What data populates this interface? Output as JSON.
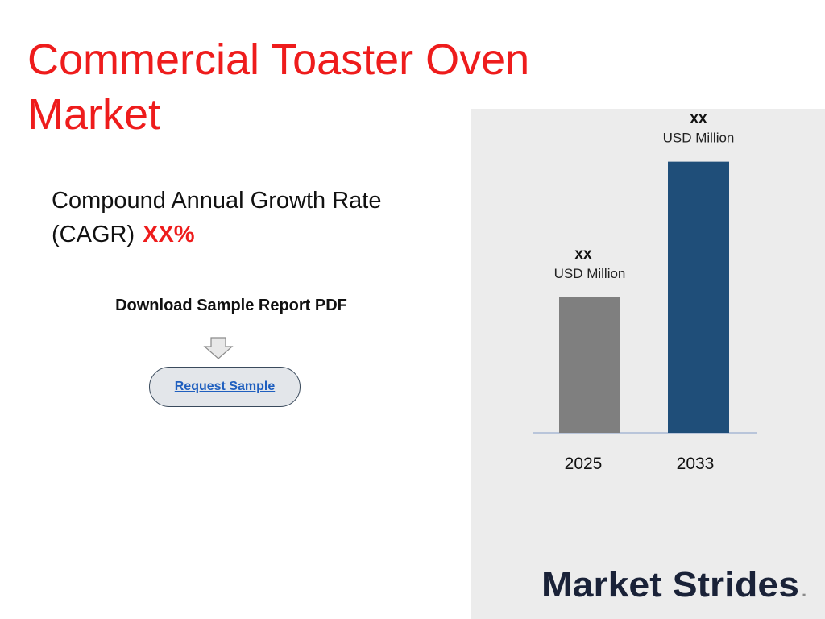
{
  "title": "Commercial Toaster Oven Market",
  "cagr": {
    "label": "Compound Annual Growth Rate (CAGR)",
    "value": "XX%"
  },
  "download": {
    "label": "Download Sample Report PDF",
    "button_label": "Request Sample"
  },
  "colors": {
    "title_red": "#ee1c1c",
    "bar_2025": "#7f7f7f",
    "bar_2033": "#1f4e79",
    "panel": "#ececec"
  },
  "chart_data": {
    "type": "bar",
    "categories": [
      "2025",
      "2033"
    ],
    "values": [
      1,
      2
    ],
    "data_labels": [
      {
        "value": "xx",
        "unit": "USD Million"
      },
      {
        "value": "xx",
        "unit": "USD Million"
      }
    ],
    "ylim": [
      0,
      2.2
    ],
    "grid": false
  },
  "logo": {
    "text": "Market Strides",
    "mark": "."
  }
}
